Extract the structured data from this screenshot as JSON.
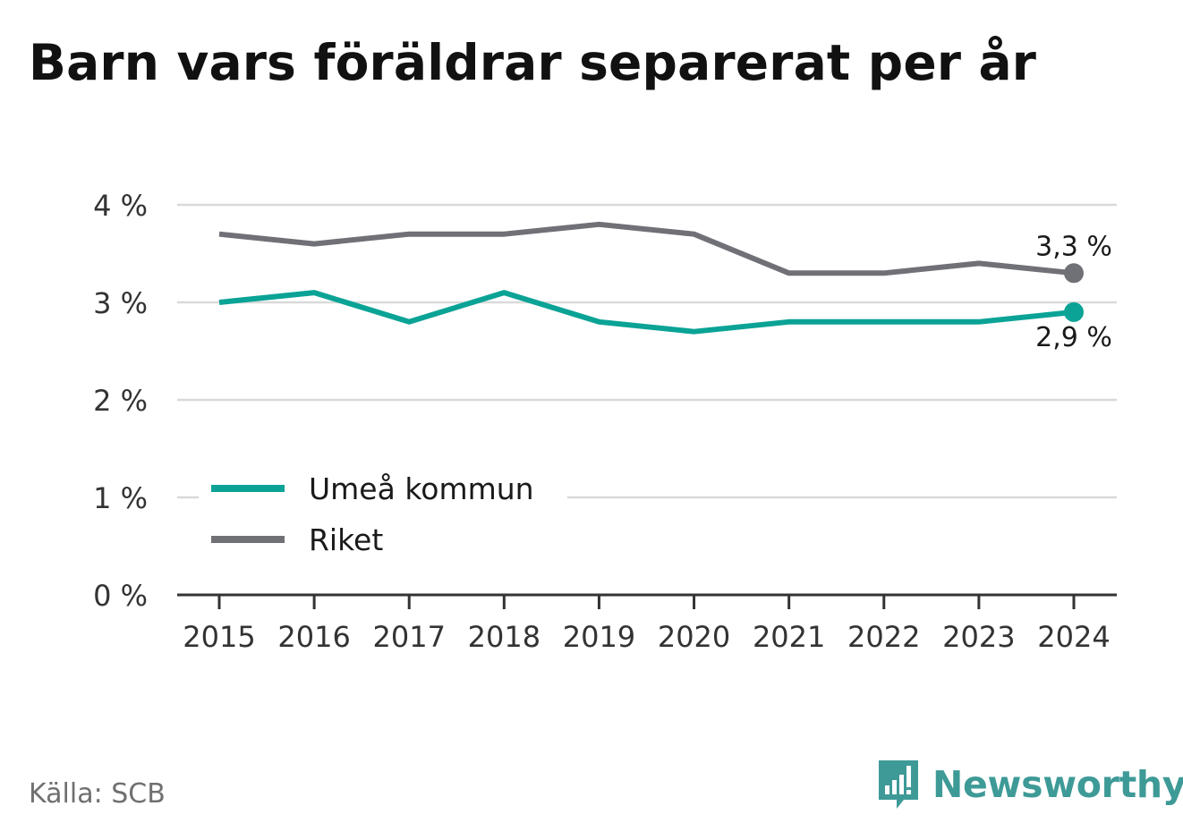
{
  "title": "Barn vars föräldrar separerat per år",
  "source": "Källa: SCB",
  "brand": {
    "name": "Newsworthy",
    "icon": "newsworthy-logo-icon"
  },
  "colors": {
    "umea": "#0aa396",
    "riket": "#707077",
    "grid": "#d9d9d9",
    "axis": "#333333",
    "brand": "#3e9a97"
  },
  "chart_data": {
    "type": "line",
    "x": [
      "2015",
      "2016",
      "2017",
      "2018",
      "2019",
      "2020",
      "2021",
      "2022",
      "2023",
      "2024"
    ],
    "series": [
      {
        "name": "Umeå kommun",
        "color": "#0aa396",
        "values": [
          3.0,
          3.1,
          2.8,
          3.1,
          2.8,
          2.7,
          2.8,
          2.8,
          2.8,
          2.9
        ],
        "end_label": "2,9 %",
        "end_label_position": "below"
      },
      {
        "name": "Riket",
        "color": "#707077",
        "values": [
          3.7,
          3.6,
          3.7,
          3.7,
          3.8,
          3.7,
          3.3,
          3.3,
          3.4,
          3.3
        ],
        "end_label": "3,3 %",
        "end_label_position": "above"
      }
    ],
    "y_ticks": [
      {
        "value": 0,
        "label": "0 %"
      },
      {
        "value": 1,
        "label": "1 %"
      },
      {
        "value": 2,
        "label": "2 %"
      },
      {
        "value": 3,
        "label": "3 %"
      },
      {
        "value": 4,
        "label": "4 %"
      }
    ],
    "ylim": [
      0,
      4
    ],
    "grid": true,
    "legend_position": "bottom-left"
  }
}
